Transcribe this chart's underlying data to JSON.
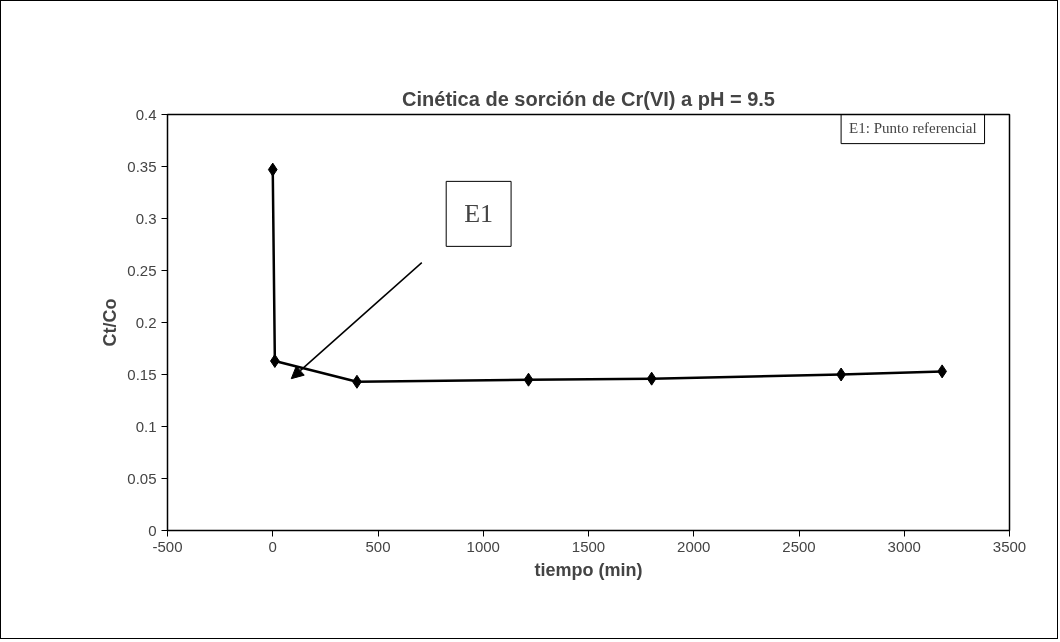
{
  "chart_data": {
    "type": "line",
    "title": "Cinética de sorción de Cr(VI) a pH = 9.5",
    "xlabel": "tiempo (min)",
    "ylabel": "Ct/Co",
    "series": [
      {
        "color": "#000000",
        "x": [
          0,
          10,
          400,
          1215,
          1800,
          2700,
          3180
        ],
        "values": [
          0.347,
          0.163,
          0.143,
          0.145,
          0.146,
          0.15,
          0.153
        ]
      }
    ],
    "xlim": [
      -500,
      3500
    ],
    "xticks": [
      -500,
      0,
      500,
      1000,
      1500,
      2000,
      2500,
      3000,
      3500
    ],
    "ylim": [
      0,
      0.4
    ],
    "yticks": [
      0,
      0.05,
      0.1,
      0.15,
      0.2,
      0.25,
      0.3,
      0.35,
      0.4
    ],
    "annotations": [
      "E1",
      "E1: Punto referencial"
    ],
    "grid": false,
    "marker": "diamond",
    "line_style": "solid"
  }
}
